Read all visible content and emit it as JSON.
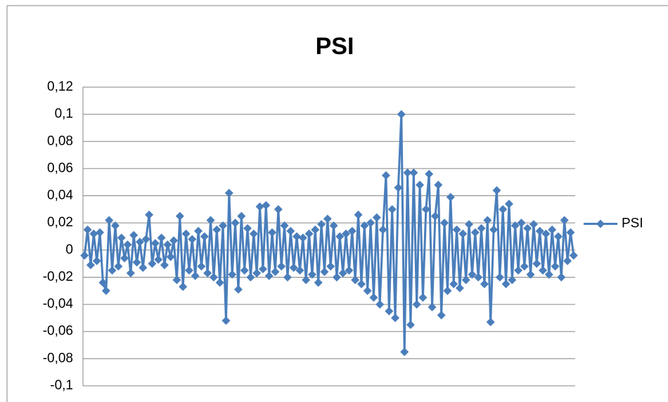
{
  "chart_data": {
    "type": "line",
    "title": "PSI",
    "series": [
      {
        "name": "PSI",
        "color": "#4a7ebb",
        "values": [
          -0.004,
          0.015,
          -0.011,
          0.012,
          -0.008,
          0.013,
          -0.024,
          -0.03,
          0.022,
          -0.015,
          0.018,
          -0.012,
          0.009,
          -0.006,
          0.004,
          -0.017,
          0.011,
          -0.009,
          0.006,
          -0.013,
          0.008,
          0.026,
          -0.01,
          0.005,
          -0.007,
          0.009,
          -0.011,
          0.004,
          -0.005,
          0.007,
          -0.022,
          0.025,
          -0.027,
          0.012,
          -0.015,
          0.008,
          -0.019,
          0.014,
          -0.012,
          0.01,
          -0.017,
          0.022,
          -0.02,
          0.015,
          -0.024,
          0.018,
          -0.052,
          0.042,
          -0.018,
          0.02,
          -0.029,
          0.025,
          -0.015,
          0.016,
          -0.02,
          0.012,
          -0.017,
          0.032,
          -0.014,
          0.033,
          -0.019,
          0.013,
          -0.016,
          0.03,
          -0.012,
          0.018,
          -0.02,
          0.014,
          -0.013,
          0.01,
          -0.015,
          0.009,
          -0.022,
          0.012,
          -0.018,
          0.015,
          -0.024,
          0.019,
          -0.016,
          0.023,
          -0.012,
          0.018,
          -0.02,
          0.01,
          -0.017,
          0.012,
          -0.015,
          0.014,
          -0.022,
          0.026,
          -0.025,
          0.018,
          -0.03,
          0.02,
          -0.035,
          0.024,
          -0.04,
          0.015,
          0.055,
          -0.045,
          0.03,
          -0.05,
          0.046,
          0.1,
          -0.075,
          0.057,
          -0.055,
          0.057,
          -0.04,
          0.048,
          -0.035,
          0.03,
          0.056,
          -0.042,
          0.025,
          0.048,
          -0.048,
          0.02,
          -0.03,
          0.039,
          -0.025,
          0.015,
          -0.028,
          0.012,
          -0.022,
          0.019,
          -0.018,
          0.013,
          -0.02,
          0.016,
          -0.025,
          0.022,
          -0.053,
          0.015,
          0.044,
          -0.02,
          0.03,
          -0.025,
          0.034,
          -0.022,
          0.018,
          -0.015,
          0.02,
          -0.012,
          0.016,
          -0.018,
          0.019,
          -0.01,
          0.014,
          -0.015,
          0.012,
          -0.018,
          0.015,
          -0.012,
          0.01,
          -0.02,
          0.022,
          -0.008,
          0.013,
          -0.004
        ]
      }
    ],
    "ylim": [
      -0.1,
      0.12
    ],
    "yticks": [
      {
        "value": -0.1,
        "label": "-0,1"
      },
      {
        "value": -0.08,
        "label": "-0,08"
      },
      {
        "value": -0.06,
        "label": "-0,06"
      },
      {
        "value": -0.04,
        "label": "-0,04"
      },
      {
        "value": -0.02,
        "label": "-0,02"
      },
      0,
      {
        "value": 0.02,
        "label": "0,02"
      },
      {
        "value": 0.04,
        "label": "0,04"
      },
      {
        "value": 0.06,
        "label": "0,06"
      },
      {
        "value": 0.08,
        "label": "0,08"
      },
      {
        "value": 0.1,
        "label": "0,1"
      },
      {
        "value": 0.12,
        "label": "0,12"
      }
    ],
    "grid": true,
    "legend": "right"
  }
}
